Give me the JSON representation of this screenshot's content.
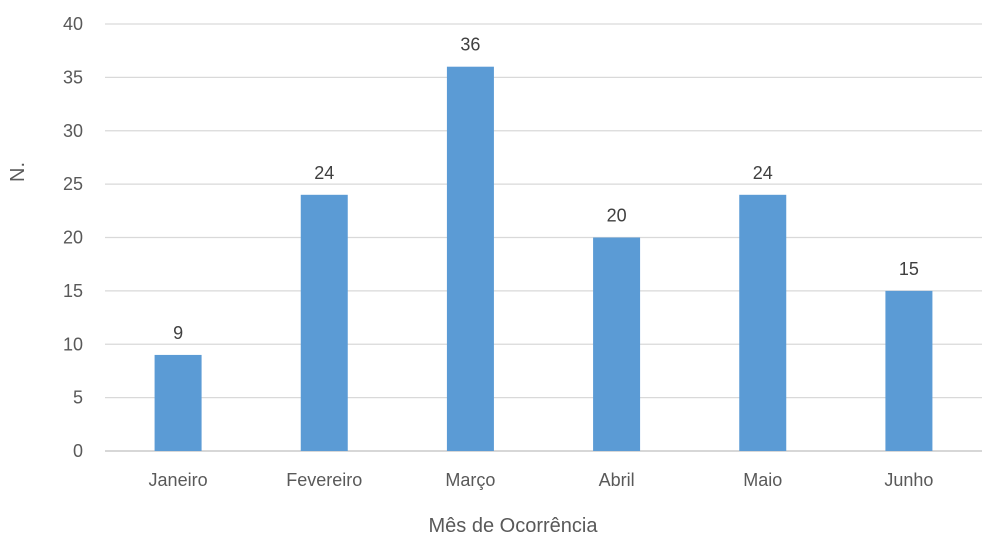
{
  "chart_data": {
    "type": "bar",
    "title": "",
    "xlabel": "Mês de Ocorrência",
    "ylabel": "N.",
    "categories": [
      "Janeiro",
      "Fevereiro",
      "Março",
      "Abril",
      "Maio",
      "Junho"
    ],
    "values": [
      9,
      24,
      36,
      20,
      24,
      15
    ],
    "ylim": [
      0,
      40
    ],
    "yticks": [
      0,
      5,
      10,
      15,
      20,
      25,
      30,
      35,
      40
    ],
    "grid": true,
    "data_labels": true,
    "bar_color": "#5B9BD5",
    "grid_color": "#D9D9D9"
  }
}
